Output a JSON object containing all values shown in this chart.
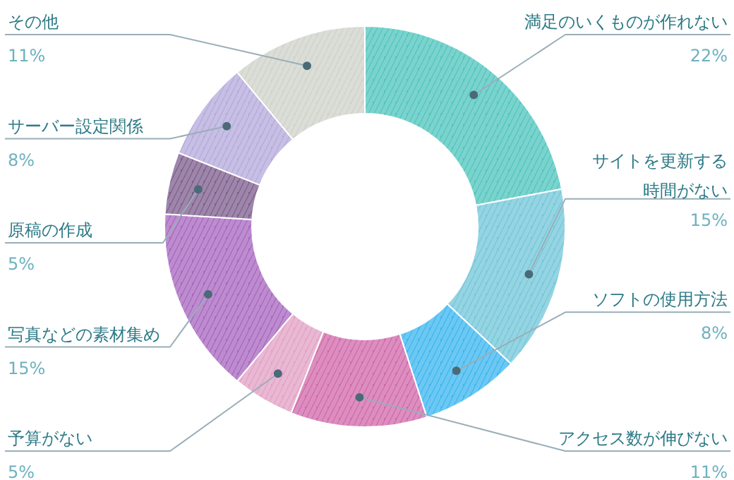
{
  "chart_data": {
    "type": "donut",
    "categories": [
      "満足のいくものが作れない",
      "サイトを更新する時間がない",
      "ソフトの使用方法",
      "アクセス数が伸びない",
      "予算がない",
      "写真などの素材集め",
      "原稿の作成",
      "サーバー設定関係",
      "その他"
    ],
    "values": [
      22,
      15,
      8,
      11,
      5,
      15,
      5,
      8,
      11
    ],
    "colors": [
      "#4fc4bd",
      "#72c6d8",
      "#3bb6ef",
      "#d068aa",
      "#e2a0c4",
      "#a765bf",
      "#7c5d8c",
      "#b4a9db",
      "#cfd1c9"
    ],
    "value_labels": [
      "22%",
      "15%",
      "8%",
      "11%",
      "5%",
      "15%",
      "5%",
      "8%",
      "11%"
    ]
  }
}
